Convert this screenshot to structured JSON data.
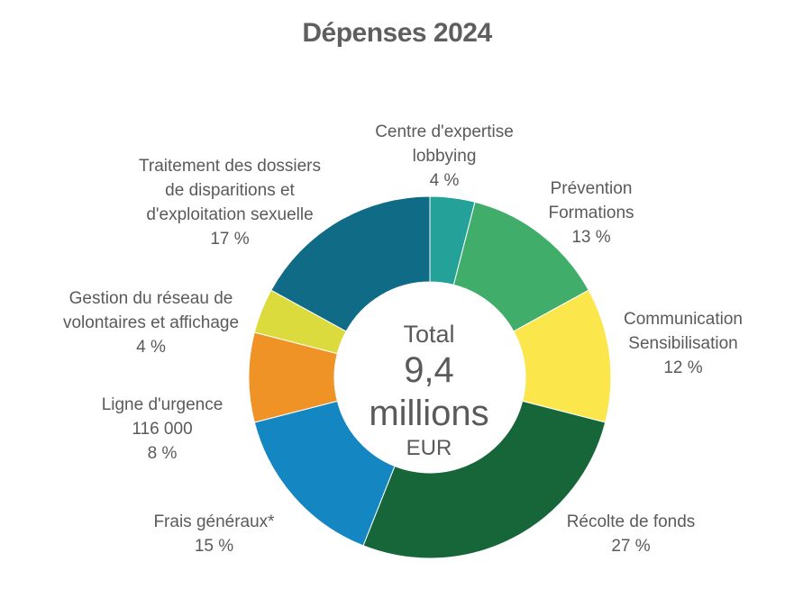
{
  "chart_data": {
    "type": "pie",
    "title": "Dépenses 2024",
    "center": {
      "line1": "Total",
      "line2": "9,4 millions",
      "line3": "EUR"
    },
    "slices": [
      {
        "label_lines": [
          "Centre d'expertise",
          "lobbying"
        ],
        "value": 4,
        "pct_text": "4 %",
        "color": "#24a199"
      },
      {
        "label_lines": [
          "Prévention",
          "Formations"
        ],
        "value": 13,
        "pct_text": "13 %",
        "color": "#40ad6b"
      },
      {
        "label_lines": [
          "Communication",
          "Sensibilisation"
        ],
        "value": 12,
        "pct_text": "12 %",
        "color": "#fbe64b"
      },
      {
        "label_lines": [
          "Récolte de fonds"
        ],
        "value": 27,
        "pct_text": "27 %",
        "color": "#16663a"
      },
      {
        "label_lines": [
          "Frais généraux*"
        ],
        "value": 15,
        "pct_text": "15 %",
        "color": "#1487c2"
      },
      {
        "label_lines": [
          "Ligne d'urgence",
          "116 000"
        ],
        "value": 8,
        "pct_text": "8 %",
        "color": "#ef9327"
      },
      {
        "label_lines": [
          "Gestion du réseau de",
          "volontaires et affichage"
        ],
        "value": 4,
        "pct_text": "4 %",
        "color": "#dcdb3d"
      },
      {
        "label_lines": [
          "Traitement des dossiers",
          "de disparitions et",
          "d'exploitation sexuelle"
        ],
        "value": 17,
        "pct_text": "17 %",
        "color": "#106b86"
      }
    ]
  }
}
